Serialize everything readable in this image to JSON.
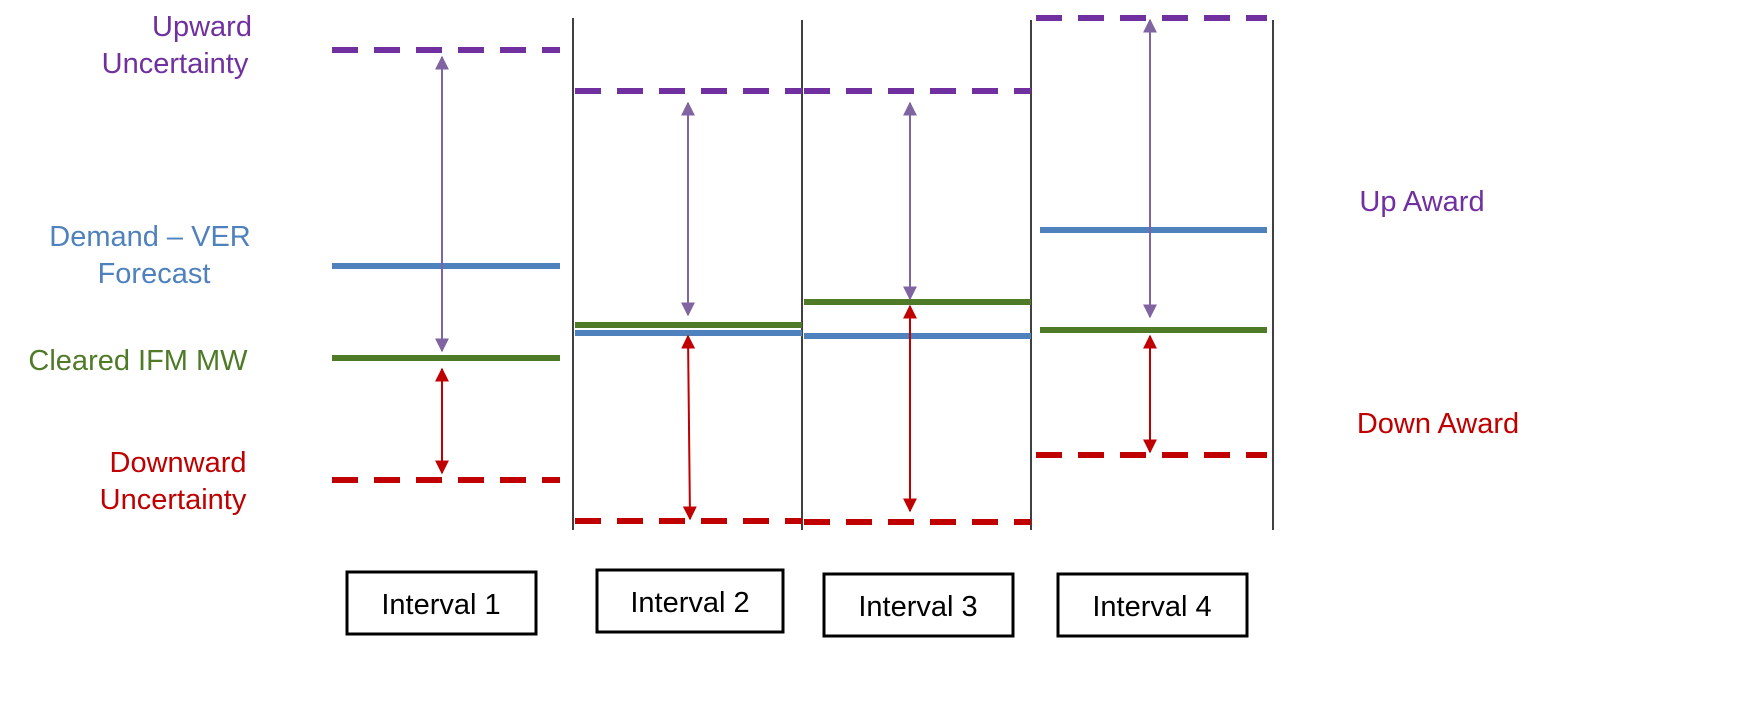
{
  "labels": {
    "upward_line1": "Upward",
    "upward_line2": "Uncertainty",
    "demand_line1": "Demand – VER",
    "demand_line2": "Forecast",
    "cleared": "Cleared IFM MW",
    "downward_line1": "Downward",
    "downward_line2": "Uncertainty",
    "up_award": "Up Award",
    "down_award": "Down Award"
  },
  "intervals": [
    {
      "label": "Interval 1"
    },
    {
      "label": "Interval 2"
    },
    {
      "label": "Interval 3"
    },
    {
      "label": "Interval 4"
    }
  ],
  "colors": {
    "upward": "#7030A0",
    "demand": "#4F81BD",
    "cleared": "#4F7A28",
    "downward": "#C00000",
    "up_arrow": "#8064A2",
    "down_arrow": "#C00000",
    "divider": "#000000"
  }
}
